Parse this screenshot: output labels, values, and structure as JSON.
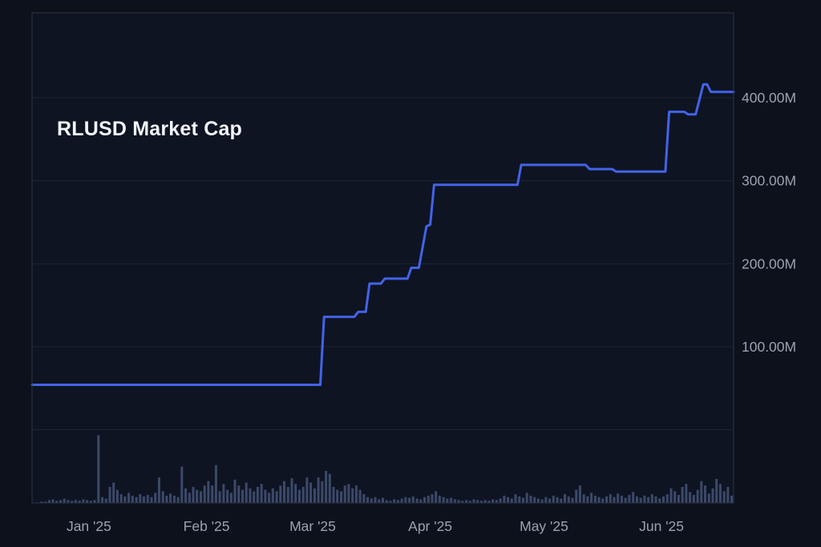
{
  "colors": {
    "background": "#0c111c",
    "plot_background": "#0e1422",
    "border": "#2b3447",
    "gridline": "#1c2433",
    "line": "#4363e8",
    "volume_bar": "#3c4969",
    "axis_text": "#9aa2b1",
    "title_text": "#f2f5fa"
  },
  "chart_data": {
    "type": "line",
    "title": "RLUSD Market Cap",
    "x_type": "date",
    "x_domain": [
      "2024-12-17",
      "2025-06-20"
    ],
    "ylim_millions": [
      0,
      502
    ],
    "grid": "horizontal-only",
    "legend": "none",
    "y_axis": {
      "side": "right",
      "unit": "M",
      "ticks": [
        {
          "value": 400,
          "label": "400.00M"
        },
        {
          "value": 300,
          "label": "300.00M"
        },
        {
          "value": 200,
          "label": "200.00M"
        },
        {
          "value": 100,
          "label": "100.00M"
        }
      ]
    },
    "x_axis": {
      "ticks": [
        {
          "date": "2025-01-01",
          "label": "Jan '25"
        },
        {
          "date": "2025-02-01",
          "label": "Feb '25"
        },
        {
          "date": "2025-03-01",
          "label": "Mar '25"
        },
        {
          "date": "2025-04-01",
          "label": "Apr '25"
        },
        {
          "date": "2025-05-01",
          "label": "May '25"
        },
        {
          "date": "2025-06-01",
          "label": "Jun '25"
        }
      ]
    },
    "series": [
      {
        "name": "RLUSD Market Cap (USD millions)",
        "points": [
          {
            "date": "2024-12-17",
            "value": 54
          },
          {
            "date": "2025-03-03",
            "value": 54
          },
          {
            "date": "2025-03-04",
            "value": 136
          },
          {
            "date": "2025-03-12",
            "value": 136
          },
          {
            "date": "2025-03-13",
            "value": 142
          },
          {
            "date": "2025-03-15",
            "value": 142
          },
          {
            "date": "2025-03-16",
            "value": 176
          },
          {
            "date": "2025-03-19",
            "value": 176
          },
          {
            "date": "2025-03-20",
            "value": 182
          },
          {
            "date": "2025-03-26",
            "value": 182
          },
          {
            "date": "2025-03-27",
            "value": 195
          },
          {
            "date": "2025-03-29",
            "value": 195
          },
          {
            "date": "2025-03-31",
            "value": 245
          },
          {
            "date": "2025-04-01",
            "value": 247
          },
          {
            "date": "2025-04-02",
            "value": 295
          },
          {
            "date": "2025-04-24",
            "value": 295
          },
          {
            "date": "2025-04-25",
            "value": 319
          },
          {
            "date": "2025-05-12",
            "value": 319
          },
          {
            "date": "2025-05-13",
            "value": 314
          },
          {
            "date": "2025-05-19",
            "value": 314
          },
          {
            "date": "2025-05-20",
            "value": 311
          },
          {
            "date": "2025-06-02",
            "value": 311
          },
          {
            "date": "2025-06-03",
            "value": 383
          },
          {
            "date": "2025-06-07",
            "value": 383
          },
          {
            "date": "2025-06-08",
            "value": 380
          },
          {
            "date": "2025-06-10",
            "value": 380
          },
          {
            "date": "2025-06-12",
            "value": 416
          },
          {
            "date": "2025-06-13",
            "value": 416
          },
          {
            "date": "2025-06-14",
            "value": 407
          },
          {
            "date": "2025-06-20",
            "value": 407
          }
        ]
      }
    ],
    "volume": {
      "name": "Daily volume bars (relative height, % of volume panel)",
      "start_date": "2024-12-17",
      "interval_days": 1,
      "values": [
        0,
        0,
        2,
        2,
        4,
        5,
        3,
        4,
        6,
        4,
        3,
        4,
        3,
        5,
        4,
        3,
        4,
        93,
        8,
        6,
        22,
        28,
        18,
        12,
        9,
        14,
        10,
        8,
        12,
        9,
        11,
        8,
        14,
        35,
        16,
        10,
        13,
        10,
        8,
        50,
        20,
        14,
        22,
        18,
        16,
        24,
        30,
        24,
        52,
        16,
        26,
        18,
        14,
        32,
        24,
        18,
        28,
        20,
        16,
        22,
        26,
        18,
        14,
        20,
        16,
        24,
        30,
        22,
        34,
        26,
        18,
        22,
        35,
        28,
        20,
        35,
        30,
        44,
        40,
        22,
        18,
        16,
        24,
        26,
        20,
        24,
        18,
        12,
        8,
        6,
        8,
        5,
        7,
        4,
        3,
        5,
        4,
        6,
        8,
        7,
        9,
        6,
        5,
        8,
        10,
        12,
        16,
        10,
        8,
        6,
        7,
        5,
        4,
        3,
        4,
        3,
        5,
        4,
        3,
        4,
        3,
        5,
        4,
        6,
        10,
        8,
        6,
        12,
        9,
        7,
        14,
        10,
        8,
        6,
        5,
        8,
        6,
        10,
        8,
        6,
        12,
        9,
        7,
        18,
        24,
        12,
        9,
        14,
        10,
        8,
        6,
        9,
        12,
        8,
        13,
        10,
        7,
        11,
        15,
        9,
        7,
        10,
        8,
        12,
        9,
        6,
        9,
        12,
        20,
        16,
        11,
        22,
        26,
        15,
        11,
        18,
        30,
        24,
        13,
        20,
        33,
        26,
        16,
        22,
        10
      ]
    }
  }
}
